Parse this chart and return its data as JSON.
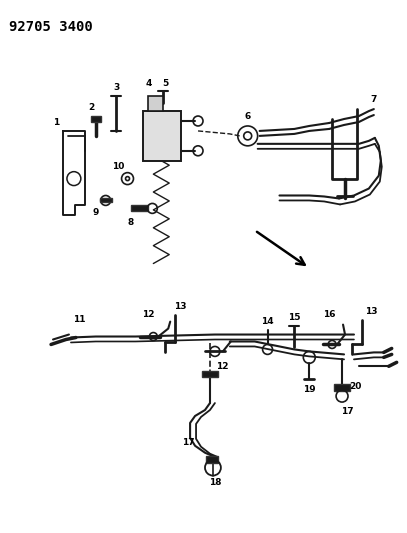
{
  "title": "92705 3400",
  "background_color": "#ffffff",
  "title_fontsize": 10,
  "title_weight": "bold",
  "title_font": "monospace",
  "fig_width": 4.07,
  "fig_height": 5.33,
  "dpi": 100,
  "line_color": "#1a1a1a",
  "label_fontsize": 6.5
}
